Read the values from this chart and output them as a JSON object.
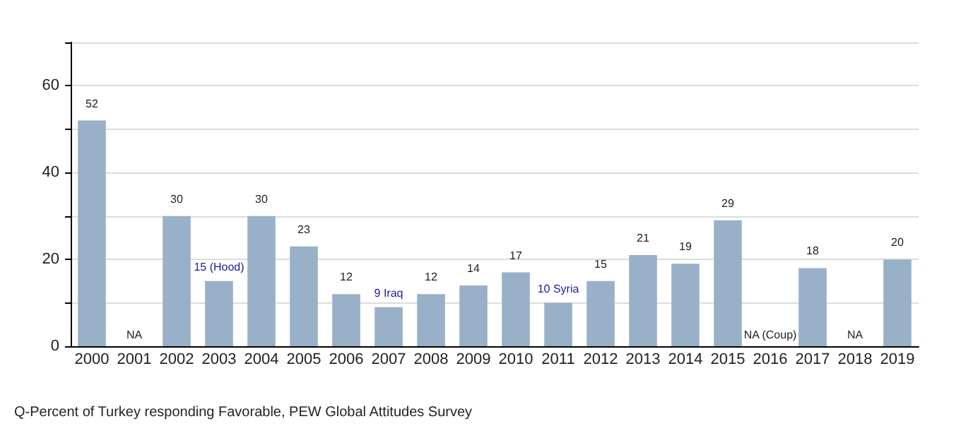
{
  "chart_data": {
    "type": "bar",
    "categories": [
      "2000",
      "2001",
      "2002",
      "2003",
      "2004",
      "2005",
      "2006",
      "2007",
      "2008",
      "2009",
      "2010",
      "2011",
      "2012",
      "2013",
      "2014",
      "2015",
      "2016",
      "2017",
      "2018",
      "2019"
    ],
    "values": [
      52,
      null,
      30,
      15,
      30,
      23,
      12,
      9,
      12,
      14,
      17,
      10,
      15,
      21,
      19,
      29,
      null,
      18,
      null,
      20
    ],
    "value_labels": [
      "52",
      "NA",
      "30",
      null,
      "30",
      "23",
      "12",
      null,
      "12",
      "14",
      "17",
      null,
      "15",
      "21",
      "19",
      "29",
      "NA (Coup)",
      "18",
      "NA",
      "20"
    ],
    "color": "#99b0c9",
    "ylim": [
      0,
      70
    ],
    "yticks": [
      0,
      {
        "value": 10,
        "label": null
      },
      20,
      {
        "value": 30,
        "label": null
      },
      40,
      {
        "value": 50,
        "label": null
      },
      60,
      {
        "value": 70,
        "label": null
      }
    ],
    "grid": "y",
    "annotations": [
      {
        "text": "15 (Hood)",
        "x": "2003",
        "y": 15
      },
      {
        "text": "9 Iraq",
        "x": "2007",
        "y": 9
      },
      {
        "text": "10 Syria",
        "x": "2011",
        "y": 10
      },
      "Q-Percent of Turkey responding Favorable, PEW Global Attitudes Survey"
    ]
  }
}
